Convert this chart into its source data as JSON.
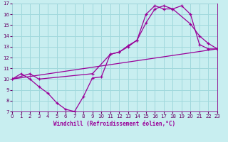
{
  "xlabel": "Windchill (Refroidissement éolien,°C)",
  "bg_color": "#c8eef0",
  "grid_color": "#a0d8dc",
  "line_color": "#990099",
  "xmin": 0,
  "xmax": 23,
  "ymin": 7,
  "ymax": 17,
  "xticks": [
    0,
    1,
    2,
    3,
    4,
    5,
    6,
    7,
    8,
    9,
    10,
    11,
    12,
    13,
    14,
    15,
    16,
    17,
    18,
    19,
    20,
    21,
    22,
    23
  ],
  "yticks": [
    7,
    8,
    9,
    10,
    11,
    12,
    13,
    14,
    15,
    16,
    17
  ],
  "curve1_x": [
    0,
    1,
    2,
    3,
    4,
    5,
    6,
    7,
    8,
    9,
    10,
    11,
    12,
    13,
    14,
    15,
    16,
    17,
    18,
    19,
    20,
    21,
    22,
    23
  ],
  "curve1_y": [
    10.0,
    10.5,
    10.0,
    9.3,
    8.7,
    7.8,
    7.2,
    7.0,
    8.4,
    10.1,
    10.2,
    12.3,
    12.5,
    13.0,
    13.6,
    16.0,
    16.8,
    16.5,
    16.5,
    16.8,
    16.0,
    13.2,
    12.8,
    12.8
  ],
  "curve2_x": [
    0,
    2,
    3,
    9,
    11,
    12,
    13,
    14,
    15,
    16,
    17,
    18,
    20,
    21,
    22,
    23
  ],
  "curve2_y": [
    10.0,
    10.5,
    10.0,
    10.5,
    12.3,
    12.5,
    13.1,
    13.6,
    15.2,
    16.5,
    16.8,
    16.5,
    15.1,
    14.0,
    13.3,
    12.8
  ],
  "curve3_x": [
    0,
    23
  ],
  "curve3_y": [
    10.0,
    12.8
  ]
}
